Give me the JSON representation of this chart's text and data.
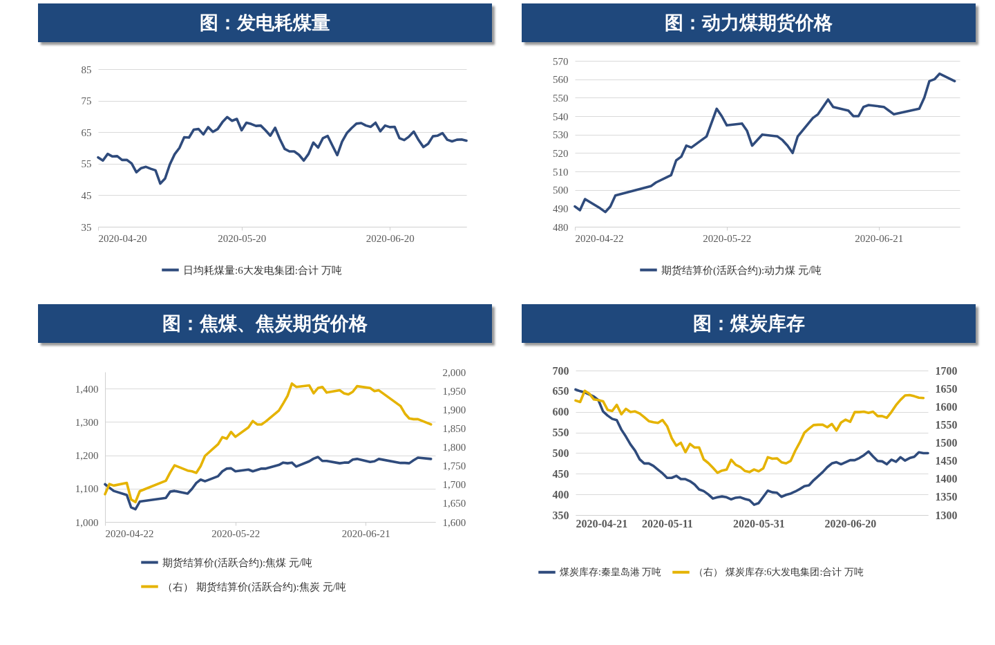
{
  "chart_data": [
    {
      "type": "line",
      "title": "图：发电耗煤量",
      "x": [
        "2020-04-20",
        "2020-04-21",
        "2020-04-22",
        "2020-04-23",
        "2020-04-24",
        "2020-04-25",
        "2020-04-26",
        "2020-04-27",
        "2020-04-28",
        "2020-04-29",
        "2020-04-30",
        "2020-05-01",
        "2020-05-02",
        "2020-05-03",
        "2020-05-04",
        "2020-05-05",
        "2020-05-06",
        "2020-05-07",
        "2020-05-08",
        "2020-05-09",
        "2020-05-10",
        "2020-05-11",
        "2020-05-12",
        "2020-05-13",
        "2020-05-14",
        "2020-05-15",
        "2020-05-16",
        "2020-05-17",
        "2020-05-18",
        "2020-05-19",
        "2020-05-20",
        "2020-05-21",
        "2020-05-22",
        "2020-05-23",
        "2020-05-24",
        "2020-05-25",
        "2020-05-26",
        "2020-05-27",
        "2020-05-28",
        "2020-05-29",
        "2020-05-30",
        "2020-05-31",
        "2020-06-01",
        "2020-06-02",
        "2020-06-03",
        "2020-06-04",
        "2020-06-05",
        "2020-06-06",
        "2020-06-07",
        "2020-06-08",
        "2020-06-09",
        "2020-06-10",
        "2020-06-11",
        "2020-06-12",
        "2020-06-13",
        "2020-06-14",
        "2020-06-15",
        "2020-06-16",
        "2020-06-17",
        "2020-06-18",
        "2020-06-19",
        "2020-06-20",
        "2020-06-21",
        "2020-06-22",
        "2020-06-23",
        "2020-06-24",
        "2020-06-25",
        "2020-06-26",
        "2020-06-27",
        "2020-06-28",
        "2020-06-29",
        "2020-06-30",
        "2020-07-01",
        "2020-07-02",
        "2020-07-03",
        "2020-07-04",
        "2020-07-05",
        "2020-07-06"
      ],
      "series": [
        {
          "name": "日均耗煤量:6大发电集团:合计  万吨",
          "color": "#2f4b7c",
          "values": [
            57.0,
            56.0,
            58.1,
            57.3,
            57.4,
            56.2,
            56.2,
            55.1,
            52.3,
            53.6,
            54.0,
            53.4,
            52.9,
            48.7,
            50.3,
            54.8,
            58.0,
            60.0,
            63.4,
            63.3,
            65.8,
            66.0,
            64.3,
            66.6,
            65.1,
            66.0,
            68.2,
            69.8,
            68.6,
            69.2,
            65.6,
            68.0,
            67.6,
            67.0,
            67.1,
            65.6,
            63.9,
            66.4,
            62.8,
            59.7,
            58.9,
            58.9,
            57.8,
            56.0,
            58.1,
            61.7,
            60.1,
            63.1,
            63.8,
            60.7,
            57.7,
            62.0,
            64.7,
            66.3,
            67.7,
            67.9,
            67.1,
            66.7,
            68.0,
            65.3,
            67.1,
            66.6,
            66.7,
            63.1,
            62.5,
            63.6,
            65.2,
            62.5,
            60.3,
            61.3,
            63.7,
            63.9,
            64.7,
            62.6,
            62.1,
            62.6,
            62.7,
            62.3
          ]
        }
      ],
      "xlim": [
        "2020-04-20",
        "2020-07-06"
      ],
      "xticks": [
        "2020-04-20",
        "2020-05-20",
        "2020-06-20"
      ],
      "ylim": [
        35,
        85
      ],
      "yticks": [
        35,
        45,
        55,
        65,
        75,
        85
      ],
      "grid": "y",
      "legend": "bottom"
    },
    {
      "type": "line",
      "title": "图：动力煤期货价格",
      "x": [
        "2020-04-22",
        "2020-04-23",
        "2020-04-24",
        "2020-04-27",
        "2020-04-28",
        "2020-04-29",
        "2020-04-30",
        "2020-05-07",
        "2020-05-08",
        "2020-05-11",
        "2020-05-12",
        "2020-05-13",
        "2020-05-14",
        "2020-05-15",
        "2020-05-18",
        "2020-05-20",
        "2020-05-21",
        "2020-05-22",
        "2020-05-25",
        "2020-05-26",
        "2020-05-27",
        "2020-05-28",
        "2020-05-29",
        "2020-06-01",
        "2020-06-02",
        "2020-06-03",
        "2020-06-04",
        "2020-06-05",
        "2020-06-08",
        "2020-06-09",
        "2020-06-11",
        "2020-06-12",
        "2020-06-15",
        "2020-06-16",
        "2020-06-17",
        "2020-06-18",
        "2020-06-19",
        "2020-06-22",
        "2020-06-23",
        "2020-06-24",
        "2020-06-29",
        "2020-06-30",
        "2020-07-01",
        "2020-07-02",
        "2020-07-03",
        "2020-07-06"
      ],
      "series": [
        {
          "name": "期货结算价(活跃合约):动力煤  元/吨",
          "color": "#2f4b7c",
          "values": [
            491,
            489,
            495,
            490,
            488,
            491,
            497,
            502,
            504,
            508,
            516,
            518,
            524,
            523,
            529,
            544,
            540,
            535,
            536,
            532,
            524,
            527,
            530,
            529,
            527,
            524,
            520,
            529,
            539,
            541,
            549,
            545,
            543,
            540,
            540,
            545,
            546,
            545,
            543,
            541,
            544,
            550,
            559,
            560,
            563,
            559
          ]
        }
      ],
      "xlim": [
        "2020-04-22",
        "2020-07-07"
      ],
      "xticks": [
        "2020-04-22",
        "2020-05-22",
        "2020-06-21"
      ],
      "ylim": [
        480,
        570
      ],
      "yticks": [
        480,
        490,
        500,
        510,
        520,
        530,
        540,
        550,
        560,
        570
      ],
      "grid": "y",
      "legend": "bottom"
    },
    {
      "type": "line",
      "title": "图：焦煤、焦炭期货价格",
      "x": [
        "2020-04-22",
        "2020-04-23",
        "2020-04-24",
        "2020-04-27",
        "2020-04-28",
        "2020-04-29",
        "2020-04-30",
        "2020-05-06",
        "2020-05-07",
        "2020-05-08",
        "2020-05-11",
        "2020-05-12",
        "2020-05-13",
        "2020-05-14",
        "2020-05-15",
        "2020-05-18",
        "2020-05-19",
        "2020-05-20",
        "2020-05-21",
        "2020-05-22",
        "2020-05-25",
        "2020-05-26",
        "2020-05-27",
        "2020-05-28",
        "2020-05-29",
        "2020-06-01",
        "2020-06-02",
        "2020-06-03",
        "2020-06-04",
        "2020-06-05",
        "2020-06-08",
        "2020-06-09",
        "2020-06-10",
        "2020-06-11",
        "2020-06-12",
        "2020-06-15",
        "2020-06-16",
        "2020-06-17",
        "2020-06-18",
        "2020-06-19",
        "2020-06-22",
        "2020-06-23",
        "2020-06-24",
        "2020-06-29",
        "2020-06-30",
        "2020-07-01",
        "2020-07-02",
        "2020-07-03",
        "2020-07-06"
      ],
      "series": [
        {
          "name": "期货结算价(活跃合约):焦煤  元/吨",
          "color": "#2f4b7c",
          "values": [
            1113,
            1103,
            1093,
            1081,
            1044,
            1038,
            1061,
            1072,
            1091,
            1093,
            1085,
            1099,
            1117,
            1127,
            1122,
            1137,
            1152,
            1160,
            1161,
            1152,
            1157,
            1152,
            1156,
            1160,
            1160,
            1171,
            1178,
            1176,
            1178,
            1166,
            1182,
            1190,
            1195,
            1183,
            1183,
            1176,
            1178,
            1178,
            1187,
            1189,
            1180,
            1182,
            1189,
            1177,
            1177,
            1176,
            1185,
            1193,
            1189
          ]
        },
        {
          "name": "（右） 期货结算价(活跃合约):焦炭  元/吨",
          "color": "#e5b300",
          "axis": "y2",
          "values": [
            1674,
            1701,
            1697,
            1704,
            1660,
            1653,
            1682,
            1710,
            1732,
            1751,
            1737,
            1735,
            1731,
            1749,
            1776,
            1807,
            1826,
            1822,
            1840,
            1827,
            1852,
            1869,
            1860,
            1860,
            1868,
            1897,
            1916,
            1936,
            1969,
            1960,
            1964,
            1943,
            1957,
            1960,
            1945,
            1951,
            1943,
            1940,
            1947,
            1962,
            1957,
            1949,
            1951,
            1909,
            1889,
            1876,
            1874,
            1874,
            1860
          ]
        }
      ],
      "xlim": [
        "2020-04-22",
        "2020-07-07"
      ],
      "xticks": [
        "2020-04-22",
        "2020-05-22",
        "2020-06-21"
      ],
      "ylim": [
        1000,
        1450
      ],
      "yticks": [
        {
          "value": 1000,
          "label": "1,000"
        },
        {
          "value": 1100,
          "label": "1,100"
        },
        {
          "value": 1200,
          "label": "1,200"
        },
        {
          "value": 1300,
          "label": "1,300"
        },
        {
          "value": 1400,
          "label": "1,400"
        }
      ],
      "y2lim": [
        1600,
        2000
      ],
      "y2ticks": [
        {
          "value": 1600,
          "label": "1,600"
        },
        {
          "value": 1650,
          "label": "1,650"
        },
        {
          "value": 1700,
          "label": "1,700"
        },
        {
          "value": 1750,
          "label": "1,750"
        },
        {
          "value": 1800,
          "label": "1,800"
        },
        {
          "value": 1850,
          "label": "1,850"
        },
        {
          "value": 1900,
          "label": "1,900"
        },
        {
          "value": 1950,
          "label": "1,950"
        },
        {
          "value": 2000,
          "label": "2,000"
        }
      ],
      "grid": "y",
      "legend": "bottom"
    },
    {
      "type": "line",
      "title": "图：煤炭库存",
      "x": [
        "2020-04-21",
        "2020-04-22",
        "2020-04-23",
        "2020-04-24",
        "2020-04-25",
        "2020-04-26",
        "2020-04-27",
        "2020-04-28",
        "2020-04-29",
        "2020-04-30",
        "2020-05-01",
        "2020-05-02",
        "2020-05-03",
        "2020-05-04",
        "2020-05-05",
        "2020-05-06",
        "2020-05-07",
        "2020-05-08",
        "2020-05-09",
        "2020-05-10",
        "2020-05-11",
        "2020-05-12",
        "2020-05-13",
        "2020-05-14",
        "2020-05-15",
        "2020-05-16",
        "2020-05-17",
        "2020-05-18",
        "2020-05-19",
        "2020-05-20",
        "2020-05-21",
        "2020-05-22",
        "2020-05-23",
        "2020-05-24",
        "2020-05-25",
        "2020-05-26",
        "2020-05-27",
        "2020-05-28",
        "2020-05-29",
        "2020-05-30",
        "2020-05-31",
        "2020-06-01",
        "2020-06-02",
        "2020-06-03",
        "2020-06-04",
        "2020-06-05",
        "2020-06-06",
        "2020-06-07",
        "2020-06-08",
        "2020-06-09",
        "2020-06-10",
        "2020-06-11",
        "2020-06-12",
        "2020-06-13",
        "2020-06-14",
        "2020-06-15",
        "2020-06-16",
        "2020-06-17",
        "2020-06-18",
        "2020-06-19",
        "2020-06-20",
        "2020-06-21",
        "2020-06-22",
        "2020-06-23",
        "2020-06-24",
        "2020-06-25",
        "2020-06-26",
        "2020-06-27",
        "2020-06-28",
        "2020-06-29",
        "2020-06-30",
        "2020-07-01",
        "2020-07-02",
        "2020-07-03",
        "2020-07-04",
        "2020-07-05",
        "2020-07-06",
        "2020-07-07"
      ],
      "series": [
        {
          "name": "煤炭库存:秦皇岛港  万吨",
          "color": "#2f4b7c",
          "values": [
            654,
            650,
            647,
            642,
            637,
            628,
            601,
            591,
            583,
            580,
            557,
            540,
            521,
            506,
            485,
            475,
            475,
            469,
            460,
            451,
            440,
            440,
            445,
            437,
            437,
            432,
            424,
            412,
            408,
            400,
            390,
            393,
            395,
            393,
            388,
            392,
            393,
            389,
            386,
            375,
            379,
            394,
            409,
            405,
            404,
            394,
            399,
            402,
            407,
            413,
            420,
            422,
            434,
            444,
            454,
            466,
            475,
            478,
            473,
            478,
            483,
            483,
            488,
            495,
            504,
            492,
            481,
            480,
            473,
            484,
            479,
            490,
            482,
            488,
            491,
            502,
            500,
            500
          ]
        },
        {
          "name": "（右） 煤炭库存:6大发电集团:合计  万吨",
          "color": "#e5b300",
          "axis": "y2",
          "values": [
            1617,
            1613,
            1644,
            1636,
            1620,
            1618,
            1615,
            1591,
            1588,
            1605,
            1579,
            1594,
            1585,
            1587,
            1581,
            1571,
            1560,
            1557,
            1555,
            1563,
            1546,
            1513,
            1492,
            1500,
            1474,
            1497,
            1487,
            1487,
            1454,
            1444,
            1431,
            1417,
            1423,
            1426,
            1453,
            1439,
            1433,
            1422,
            1419,
            1426,
            1421,
            1429,
            1460,
            1456,
            1457,
            1446,
            1443,
            1450,
            1478,
            1501,
            1528,
            1539,
            1549,
            1550,
            1550,
            1543,
            1552,
            1534,
            1556,
            1564,
            1558,
            1585,
            1585,
            1586,
            1583,
            1586,
            1574,
            1574,
            1569,
            1585,
            1604,
            1619,
            1631,
            1632,
            1629,
            1625,
            1624,
            null
          ]
        }
      ],
      "xlim": [
        "2020-04-21",
        "2020-07-07"
      ],
      "xticks": [
        "2020-04-21",
        "2020-05-11",
        "2020-05-31",
        "2020-06-20"
      ],
      "ylim": [
        350,
        700
      ],
      "yticks": [
        350,
        400,
        450,
        500,
        550,
        600,
        650,
        700
      ],
      "y2lim": [
        1300,
        1700
      ],
      "y2ticks": [
        1300,
        1350,
        1400,
        1450,
        1500,
        1550,
        1600,
        1650,
        1700
      ],
      "grid": "y",
      "legend": "bottom"
    }
  ]
}
